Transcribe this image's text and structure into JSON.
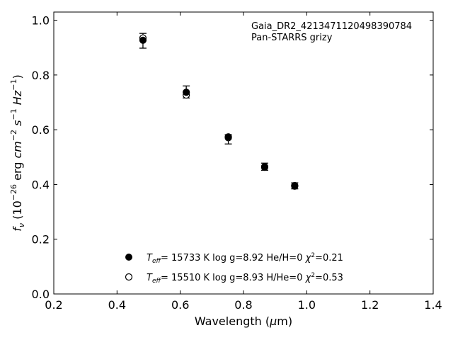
{
  "chart_data": {
    "type": "scatter",
    "title": "",
    "xlabel": "Wavelength (μm)",
    "ylabel": "f_ν (10^-26 erg cm^-2 s^-1 Hz^-1)",
    "xlim": [
      0.2,
      1.4
    ],
    "ylim": [
      0.0,
      1.03
    ],
    "xticks": [
      0.2,
      0.4,
      0.6,
      0.8,
      1.0,
      1.2,
      1.4
    ],
    "xtick_labels": [
      "0.2",
      "0.4",
      "0.6",
      "0.8",
      "1.0",
      "1.2",
      "1.4"
    ],
    "yticks": [
      0.0,
      0.2,
      0.4,
      0.6,
      0.8,
      1.0
    ],
    "ytick_labels": [
      "0.0",
      "0.2",
      "0.4",
      "0.6",
      "0.8",
      "1.0"
    ],
    "grid": false,
    "annotation": {
      "line1": "Gaia_DR2_4213471120498390784",
      "line2": "Pan-STARRS grizy"
    },
    "observed": {
      "x": [
        0.482,
        0.619,
        0.752,
        0.867,
        0.962
      ],
      "y": [
        0.925,
        0.738,
        0.565,
        0.465,
        0.395
      ],
      "yerr": [
        0.027,
        0.022,
        0.017,
        0.013,
        0.011
      ]
    },
    "series": [
      {
        "name": "T_eff= 15733 K  log g=8.92  He/H=0  χ²=0.21",
        "marker": "filled",
        "x": [
          0.482,
          0.619,
          0.752,
          0.867,
          0.962
        ],
        "y": [
          0.927,
          0.737,
          0.574,
          0.465,
          0.396
        ]
      },
      {
        "name": "T_eff= 15510 K  log g=8.93  H/He=0  χ²=0.53",
        "marker": "open",
        "x": [
          0.482,
          0.619,
          0.752,
          0.867,
          0.962
        ],
        "y": [
          0.935,
          0.727,
          0.571,
          0.463,
          0.394
        ]
      }
    ],
    "legend": {
      "position": "bottom-center",
      "entries": [
        {
          "teff": "15733",
          "logg": "8.92",
          "comp": "He/H=0",
          "chi2": "0.21"
        },
        {
          "teff": "15510",
          "logg": "8.93",
          "comp": "H/He=0",
          "chi2": "0.53"
        }
      ]
    },
    "colors": {
      "marker": "#000000",
      "axes": "#000000"
    }
  }
}
